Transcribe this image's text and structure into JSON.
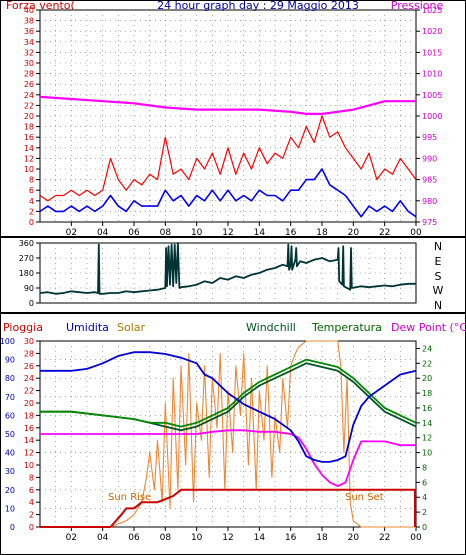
{
  "chart_data": [
    {
      "type": "line",
      "panel": "wind-pressure",
      "title": "24 hour graph day : 29 Maggio 2013",
      "left_label": "Forza vento(",
      "right_label": "Pressione",
      "left_ticks": [
        0,
        2,
        4,
        6,
        8,
        10,
        12,
        14,
        16,
        18,
        20,
        22,
        24,
        26,
        28,
        30,
        32,
        34,
        36,
        38,
        40
      ],
      "right_ticks": [
        975,
        980,
        985,
        990,
        995,
        1000,
        1005,
        1010,
        1015,
        1020,
        1025
      ],
      "x_ticks": [
        "02",
        "04",
        "06",
        "08",
        "10",
        "12",
        "14",
        "16",
        "18",
        "20",
        "22",
        "00"
      ],
      "ylim_left": [
        0,
        40
      ],
      "ylim_right": [
        975,
        1025
      ],
      "grid": true,
      "series": [
        {
          "key": "gust",
          "color": "#ff0000",
          "axis": "left",
          "x": [
            0,
            0.5,
            1,
            1.5,
            2,
            2.5,
            3,
            3.5,
            4,
            4.5,
            5,
            5.5,
            6,
            6.5,
            7,
            7.5,
            8,
            8.5,
            9,
            9.5,
            10,
            10.5,
            11,
            11.5,
            12,
            12.5,
            13,
            13.5,
            14,
            14.5,
            15,
            15.5,
            16,
            16.5,
            17,
            17.5,
            18,
            18.5,
            19,
            19.5,
            20,
            20.5,
            21,
            21.5,
            22,
            22.5,
            23,
            23.5,
            24
          ],
          "values": [
            5,
            4,
            5,
            5,
            6,
            5,
            6,
            5,
            6,
            12,
            8,
            6,
            8,
            7,
            9,
            8,
            16,
            9,
            10,
            8,
            12,
            10,
            13,
            9,
            14,
            9,
            13,
            10,
            14,
            11,
            13,
            12,
            16,
            14,
            18,
            15,
            20,
            16,
            17,
            14,
            12,
            10,
            13,
            8,
            10,
            9,
            12,
            10,
            8
          ]
        },
        {
          "key": "wind",
          "color": "#0000ff",
          "axis": "left",
          "x": [
            0,
            0.5,
            1,
            1.5,
            2,
            2.5,
            3,
            3.5,
            4,
            4.5,
            5,
            5.5,
            6,
            6.5,
            7,
            7.5,
            8,
            8.5,
            9,
            9.5,
            10,
            10.5,
            11,
            11.5,
            12,
            12.5,
            13,
            13.5,
            14,
            14.5,
            15,
            15.5,
            16,
            16.5,
            17,
            17.5,
            18,
            18.5,
            19,
            19.5,
            20,
            20.5,
            21,
            21.5,
            22,
            22.5,
            23,
            23.5,
            24
          ],
          "values": [
            2,
            3,
            2,
            2,
            3,
            2,
            3,
            2,
            3,
            5,
            3,
            2,
            4,
            3,
            3,
            3,
            6,
            4,
            5,
            3,
            5,
            4,
            6,
            4,
            6,
            4,
            5,
            4,
            6,
            5,
            5,
            4,
            6,
            6,
            8,
            8,
            10,
            7,
            6,
            5,
            3,
            1,
            3,
            2,
            3,
            2,
            4,
            2,
            1
          ]
        },
        {
          "key": "pressure",
          "color": "#ff00ff",
          "axis": "right",
          "x": [
            0,
            2,
            4,
            6,
            8,
            10,
            12,
            14,
            16,
            17,
            18,
            19,
            20,
            21,
            22,
            23,
            24
          ],
          "values": [
            1004.5,
            1004,
            1003.5,
            1003,
            1002,
            1001.5,
            1001.5,
            1001.5,
            1001,
            1000.5,
            1000.5,
            1001,
            1001.5,
            1002.5,
            1003.5,
            1003.5,
            1003.5
          ]
        }
      ]
    },
    {
      "type": "line",
      "panel": "wind-direction",
      "left_ticks": [
        0,
        90,
        180,
        270,
        360
      ],
      "ylim": [
        0,
        360
      ],
      "compass_labels": [
        "N",
        "W",
        "S",
        "E",
        "N"
      ],
      "x_ticks": [
        "02",
        "04",
        "06",
        "08",
        "10",
        "12",
        "14",
        "16",
        "18",
        "20",
        "22",
        "00"
      ],
      "grid": true,
      "series": [
        {
          "key": "direction",
          "color": "#003333",
          "x": [
            0,
            0.5,
            1,
            1.5,
            2,
            2.5,
            3,
            3.5,
            3.7,
            3.75,
            3.8,
            4,
            4.5,
            5,
            5.5,
            6,
            6.5,
            7,
            7.5,
            8,
            8.05,
            8.1,
            8.2,
            8.3,
            8.4,
            8.5,
            8.6,
            8.7,
            8.8,
            8.9,
            9,
            9.5,
            10,
            10.5,
            11,
            11.5,
            12,
            12.5,
            13,
            13.5,
            14,
            14.5,
            15,
            15.5,
            15.8,
            15.85,
            15.9,
            16,
            16.05,
            16.1,
            16.3,
            16.35,
            16.4,
            16.6,
            17,
            17.5,
            18,
            18.5,
            19,
            19.05,
            19.1,
            19.3,
            19.35,
            19.4,
            19.8,
            19.85,
            19.9,
            20.5,
            21,
            21.5,
            22,
            22.5,
            23,
            23.5,
            24
          ],
          "values": [
            60,
            65,
            55,
            60,
            70,
            65,
            60,
            65,
            60,
            350,
            55,
            55,
            60,
            60,
            70,
            65,
            70,
            75,
            80,
            90,
            330,
            100,
            340,
            110,
            350,
            100,
            350,
            120,
            360,
            90,
            95,
            100,
            110,
            130,
            120,
            150,
            140,
            160,
            150,
            170,
            180,
            200,
            210,
            230,
            220,
            350,
            200,
            230,
            340,
            200,
            260,
            330,
            220,
            250,
            240,
            260,
            270,
            250,
            260,
            330,
            130,
            110,
            340,
            100,
            80,
            330,
            90,
            100,
            95,
            100,
            105,
            100,
            110,
            115,
            115
          ]
        }
      ]
    },
    {
      "type": "line",
      "panel": "rain-humidity-temperature",
      "legend": [
        "Pioggia",
        "Umidita",
        "Solar",
        "Windchill",
        "Temperatura",
        "Dew Point (°C)"
      ],
      "ticks_humidity": [
        0,
        10,
        20,
        30,
        40,
        50,
        60,
        70,
        80,
        90,
        100
      ],
      "ticks_rain": [
        0,
        2,
        4,
        6,
        8,
        10,
        12,
        14,
        16,
        18,
        20,
        22,
        24,
        26,
        28,
        30
      ],
      "ticks_temp": [
        0,
        2,
        4,
        6,
        8,
        10,
        12,
        14,
        16,
        18,
        20,
        22,
        24
      ],
      "x_ticks": [
        "02",
        "04",
        "06",
        "08",
        "10",
        "12",
        "14",
        "16",
        "18",
        "20",
        "22",
        "00"
      ],
      "annotations": [
        "Sun Rise",
        "Sun Set"
      ],
      "grid": true,
      "series": [
        {
          "key": "rain",
          "color": "#cc0000",
          "axis": "rain",
          "x": [
            0,
            3.5,
            4.5,
            5.2,
            5.5,
            6,
            6.5,
            7.5,
            8.5,
            9,
            24
          ],
          "values": [
            0,
            0,
            0,
            2,
            3,
            3,
            4,
            4,
            5,
            6,
            6
          ]
        },
        {
          "key": "humidity",
          "color": "#0000dd",
          "axis": "humidity",
          "x": [
            0,
            1,
            2,
            3,
            4,
            5,
            6,
            7,
            8,
            9,
            10,
            10.5,
            11,
            12,
            13,
            14,
            15,
            16,
            16.5,
            17,
            17.5,
            18,
            18.5,
            19,
            19.5,
            20,
            20.5,
            21,
            22,
            23,
            24
          ],
          "values": [
            84,
            84,
            84,
            85,
            88,
            92,
            94,
            94,
            93,
            91,
            88,
            82,
            80,
            72,
            66,
            62,
            58,
            52,
            46,
            38,
            36,
            35,
            35,
            36,
            38,
            55,
            65,
            70,
            76,
            82,
            84
          ]
        },
        {
          "key": "solar",
          "color": "#ee8833",
          "axis": "rain",
          "x": [
            0,
            4.5,
            5,
            5.5,
            6,
            6.5,
            6.8,
            7,
            7.3,
            7.5,
            7.8,
            8,
            8.3,
            8.5,
            8.8,
            9,
            9.3,
            9.5,
            9.8,
            10,
            10.3,
            10.5,
            10.8,
            11,
            11.3,
            11.5,
            11.8,
            12,
            12.3,
            12.5,
            12.8,
            13,
            13.3,
            13.5,
            13.8,
            14,
            14.3,
            14.5,
            14.8,
            15,
            15.3,
            15.5,
            15.8,
            16,
            16.3,
            16.5,
            17,
            17.5,
            18,
            18.5,
            19,
            19.2,
            19.4,
            19.6,
            19.8,
            20,
            20.5,
            24
          ],
          "values": [
            0,
            0,
            0.5,
            1,
            2,
            4,
            8,
            12,
            6,
            14,
            4,
            20,
            3,
            24,
            6,
            26,
            10,
            28,
            4,
            20,
            14,
            26,
            8,
            24,
            16,
            28,
            6,
            22,
            12,
            26,
            18,
            28,
            10,
            24,
            6,
            22,
            14,
            26,
            8,
            18,
            12,
            24,
            16,
            26,
            28,
            29,
            30,
            30,
            30,
            30,
            30,
            26,
            12,
            24,
            4,
            1,
            0,
            0
          ]
        },
        {
          "key": "windchill",
          "color": "#005522",
          "axis": "temp",
          "x": [
            0,
            2,
            4,
            6,
            7,
            8,
            9,
            10,
            11,
            12,
            13,
            14,
            15,
            16,
            16.5,
            17,
            18,
            19,
            20,
            21,
            22,
            23,
            24
          ],
          "values": [
            15.5,
            15.5,
            15,
            14.5,
            14,
            13.5,
            13,
            13.5,
            14.5,
            15.5,
            17.5,
            19,
            20,
            21,
            21.5,
            22,
            21.5,
            21,
            19.5,
            17.5,
            15.5,
            14.5,
            13.5
          ]
        },
        {
          "key": "temperature",
          "color": "#008800",
          "axis": "temp",
          "x": [
            0,
            2,
            4,
            6,
            7,
            8,
            9,
            10,
            11,
            12,
            13,
            14,
            15,
            16,
            16.5,
            17,
            18,
            19,
            20,
            21,
            22,
            23,
            24
          ],
          "values": [
            15.5,
            15.5,
            15,
            14.5,
            14,
            14,
            13.5,
            14,
            15,
            16,
            18,
            19.5,
            20.5,
            21.5,
            22,
            22.5,
            22,
            21.5,
            20,
            18,
            16,
            15,
            14
          ]
        },
        {
          "key": "dewpoint",
          "color": "#ff00ff",
          "axis": "temp",
          "x": [
            0,
            2,
            4,
            6,
            8,
            9,
            10,
            11,
            12,
            13,
            14,
            15,
            16,
            16.5,
            17,
            17.5,
            18,
            18.5,
            19,
            19.5,
            20,
            20.5,
            21,
            22,
            23,
            24
          ],
          "values": [
            12.5,
            12.5,
            12.5,
            12.5,
            12.5,
            12.5,
            12.5,
            12.8,
            13,
            13,
            12.8,
            12.8,
            12.5,
            12,
            10.5,
            8.5,
            7,
            6,
            5.5,
            6,
            9,
            11.5,
            11.5,
            11.5,
            11,
            11
          ]
        }
      ]
    }
  ]
}
